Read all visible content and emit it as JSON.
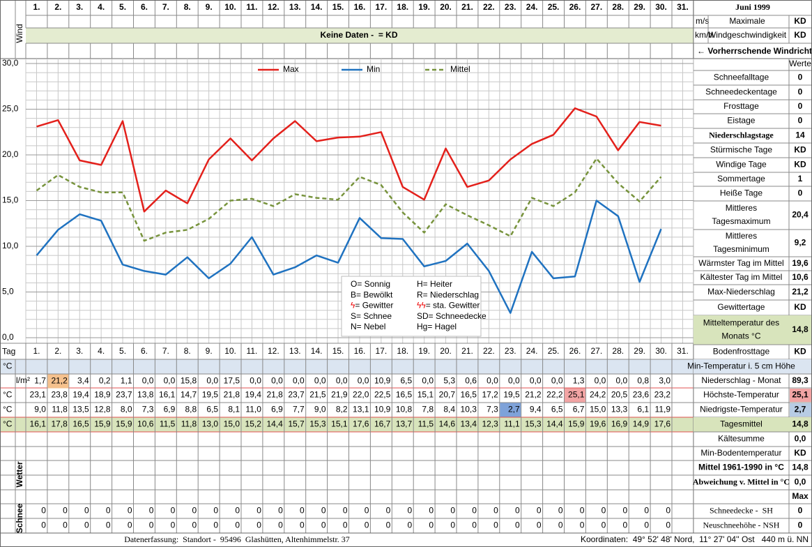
{
  "header": {
    "month": "Juni 1999",
    "wind_label": "Wind",
    "no_data": "Keine Daten -  = KD",
    "ms": "m/s",
    "kmh": "km/h",
    "max_wind": [
      "Maximale",
      "Windgeschwindigkeit"
    ],
    "max_wind_values": [
      "KD",
      "KD"
    ],
    "wind_direction": "← Vorherrschende Windrichtung"
  },
  "chart_data": {
    "type": "line",
    "categories": [
      "1.",
      "2.",
      "3.",
      "4.",
      "5.",
      "6.",
      "7.",
      "8.",
      "9.",
      "10.",
      "11.",
      "12.",
      "13.",
      "14.",
      "15.",
      "16.",
      "17.",
      "18.",
      "19.",
      "20.",
      "21.",
      "22.",
      "23.",
      "24.",
      "25.",
      "26.",
      "27.",
      "28.",
      "29.",
      "30.",
      "31."
    ],
    "series": [
      {
        "name": "Max",
        "color": "#e3201b",
        "dash": false,
        "values": [
          23.1,
          23.8,
          19.4,
          18.9,
          23.7,
          13.8,
          16.1,
          14.7,
          19.5,
          21.8,
          19.4,
          21.8,
          23.7,
          21.5,
          21.9,
          22.0,
          22.5,
          16.5,
          15.1,
          20.7,
          16.5,
          17.2,
          19.5,
          21.2,
          22.2,
          25.1,
          24.2,
          20.5,
          23.6,
          23.2,
          null
        ],
        "value_labels": [
          "23,1",
          "23,8",
          "19,4",
          "18,9",
          "23,7",
          "13,8",
          "16,1",
          "14,7",
          "19,5",
          "21,8",
          "19,4",
          "21,8",
          "23,7",
          "21,5",
          "21,9",
          "22,0",
          "22,5",
          "16,5",
          "15,1",
          "20,7",
          "16,5",
          "17,2",
          "19,5",
          "21,2",
          "22,2",
          "25,1",
          "24,2",
          "20,5",
          "23,6",
          "23,2",
          null
        ]
      },
      {
        "name": "Min",
        "color": "#1f72c0",
        "dash": false,
        "values": [
          9.0,
          11.8,
          13.5,
          12.8,
          8.0,
          7.3,
          6.9,
          8.8,
          6.5,
          8.1,
          11.0,
          6.9,
          7.7,
          9.0,
          8.2,
          13.1,
          10.9,
          10.8,
          7.8,
          8.4,
          10.3,
          7.3,
          2.7,
          9.4,
          6.5,
          6.7,
          15.0,
          13.3,
          6.1,
          11.9,
          null
        ],
        "value_labels": [
          "9,0",
          "11,8",
          "13,5",
          "12,8",
          "8,0",
          "7,3",
          "6,9",
          "8,8",
          "6,5",
          "8,1",
          "11,0",
          "6,9",
          "7,7",
          "9,0",
          "8,2",
          "13,1",
          "10,9",
          "10,8",
          "7,8",
          "8,4",
          "10,3",
          "7,3",
          "2,7",
          "9,4",
          "6,5",
          "6,7",
          "15,0",
          "13,3",
          "6,1",
          "11,9",
          null
        ]
      },
      {
        "name": "Mittel",
        "color": "#77933c",
        "dash": true,
        "values": [
          16.1,
          17.8,
          16.5,
          15.9,
          15.9,
          10.6,
          11.5,
          11.8,
          13.0,
          15.0,
          15.2,
          14.4,
          15.7,
          15.3,
          15.1,
          17.6,
          16.7,
          13.7,
          11.5,
          14.6,
          13.4,
          12.3,
          11.1,
          15.3,
          14.4,
          15.9,
          19.6,
          16.9,
          14.9,
          17.6,
          null
        ],
        "value_labels": [
          "16,1",
          "17,8",
          "16,5",
          "15,9",
          "15,9",
          "10,6",
          "11,5",
          "11,8",
          "13,0",
          "15,0",
          "15,2",
          "14,4",
          "15,7",
          "15,3",
          "15,1",
          "17,6",
          "16,7",
          "13,7",
          "11,5",
          "14,6",
          "13,4",
          "12,3",
          "11,1",
          "15,3",
          "14,4",
          "15,9",
          "19,6",
          "16,9",
          "14,9",
          "17,6",
          null
        ]
      }
    ],
    "ylim": [
      0,
      30
    ],
    "yticks": [
      {
        "value": 0,
        "label": "0,0"
      },
      {
        "value": 5,
        "label": "5,0"
      },
      {
        "value": 10,
        "label": "10,0"
      },
      {
        "value": 15,
        "label": "15,0"
      },
      {
        "value": 20,
        "label": "20,0"
      },
      {
        "value": 25,
        "label": "25,0"
      },
      {
        "value": 30,
        "label": "30,0"
      }
    ],
    "grid": true
  },
  "weather_legend": [
    {
      "symbol": "O",
      "text": "= Sonnig"
    },
    {
      "symbol": "H",
      "text": "= Heiter"
    },
    {
      "symbol": "B",
      "text": "= Bewölkt"
    },
    {
      "symbol": "R",
      "text": "= Niederschlag"
    },
    {
      "symbol": "ϟ",
      "text": "= Gewitter"
    },
    {
      "symbol": "ϟϟ",
      "text": "= sta. Gewitter"
    },
    {
      "symbol": "S",
      "text": "= Schnee"
    },
    {
      "symbol": "SD",
      "text": "= Schneedecke"
    },
    {
      "symbol": "N",
      "text": "= Nebel"
    },
    {
      "symbol": "Hg",
      "text": "= Hagel"
    }
  ],
  "table": {
    "row_labels": [
      "Tag",
      "°C",
      "l/m²",
      "°C",
      "°C",
      "°C"
    ],
    "precipitation": [
      "1,7",
      "21,2",
      "3,4",
      "0,2",
      "1,1",
      "0,0",
      "0,0",
      "15,8",
      "0,0",
      "17,5",
      "0,0",
      "0,0",
      "0,0",
      "0,0",
      "0,0",
      "0,0",
      "10,9",
      "6,5",
      "0,0",
      "5,3",
      "0,6",
      "0,0",
      "0,0",
      "0,0",
      "0,0",
      "1,3",
      "0,0",
      "0,0",
      "0,8",
      "3,0"
    ]
  },
  "section_labels": {
    "weather": "Wetter",
    "snow": "Schnee"
  },
  "snow": {
    "sh": [
      "0",
      "0",
      "0",
      "0",
      "0",
      "0",
      "0",
      "0",
      "0",
      "0",
      "0",
      "0",
      "0",
      "0",
      "0",
      "0",
      "0",
      "0",
      "0",
      "0",
      "0",
      "0",
      "0",
      "0",
      "0",
      "0",
      "0",
      "0",
      "0",
      "0"
    ],
    "nsh": [
      "0",
      "0",
      "0",
      "0",
      "0",
      "0",
      "0",
      "0",
      "0",
      "0",
      "0",
      "0",
      "0",
      "0",
      "0",
      "0",
      "0",
      "0",
      "0",
      "0",
      "0",
      "0",
      "0",
      "0",
      "0",
      "0",
      "0",
      "0",
      "0",
      "0"
    ]
  },
  "side": {
    "header": "Werte",
    "rows": [
      {
        "label": [
          "Schneefalltage"
        ],
        "value": "0"
      },
      {
        "label": [
          "Schneedeckentage"
        ],
        "value": "0"
      },
      {
        "label": [
          "Frosttage"
        ],
        "value": "0"
      },
      {
        "label": [
          "Eistage"
        ],
        "value": "0"
      },
      {
        "label": [
          "Niederschlagstage"
        ],
        "value": "14"
      },
      {
        "label": [
          "Stürmische Tage"
        ],
        "value": "KD"
      },
      {
        "label": [
          "Windige Tage"
        ],
        "value": "KD"
      },
      {
        "label": [
          "Sommertage"
        ],
        "value": "1"
      },
      {
        "label": [
          "Heiße Tage"
        ],
        "value": "0"
      },
      {
        "label": [
          "Mittleres",
          "Tagesmaximum"
        ],
        "value": "20,4"
      },
      {
        "label": [
          "Mittleres",
          "Tagesminimum"
        ],
        "value": "9,2"
      },
      {
        "label": [
          "Wärmster Tag im Mittel"
        ],
        "value": "19,6"
      },
      {
        "label": [
          "Kältester Tag im Mittel"
        ],
        "value": "10,6"
      },
      {
        "label": [
          "Max-Niederschlag"
        ],
        "value": "21,2"
      },
      {
        "label": [
          "Gewittertage"
        ],
        "value": "KD"
      },
      {
        "label": [
          "Mitteltemperatur des",
          "Monats °C"
        ],
        "value": "14,8"
      },
      {
        "label": [
          "Bodenfrosttage"
        ],
        "value": "KD"
      },
      {
        "label": [
          "Min-Temperatur i. 5 cm Höhe"
        ]
      },
      {
        "label": [
          "Niederschlag - Monat"
        ],
        "value": "89,3"
      },
      {
        "label": [
          "Höchste-Temperatur"
        ],
        "value": "25,1"
      },
      {
        "label": [
          "Niedrigste-Temperatur"
        ],
        "value": "2,7"
      },
      {
        "label": [
          "Tagesmittel"
        ],
        "value": "14,8"
      },
      {
        "label": [
          "Kältesumme"
        ],
        "value": "0,0"
      },
      {
        "label": [
          "Min-Bodentemperatur"
        ],
        "value": "KD"
      },
      {
        "label": [
          "Mittel 1961-1990 in °C"
        ],
        "value": "14,8"
      },
      {
        "label": [
          "Abweichung v. Mittel in °C"
        ],
        "value": "0,0"
      }
    ],
    "max_header": "Max",
    "snow_rows": [
      {
        "label": [
          "Schneedecke -  SH"
        ],
        "value": "0"
      },
      {
        "label": [
          "Neuschneehöhe - NSH"
        ],
        "value": "0"
      }
    ]
  },
  "footer": {
    "left": "Datenerfassung:  Standort -  95496  Glashütten, Altenhimmelstr. 37",
    "right": "Koordinaten:  49° 52' 48' Nord,  11° 27' 04'' Ost   440 m ü. NN"
  }
}
